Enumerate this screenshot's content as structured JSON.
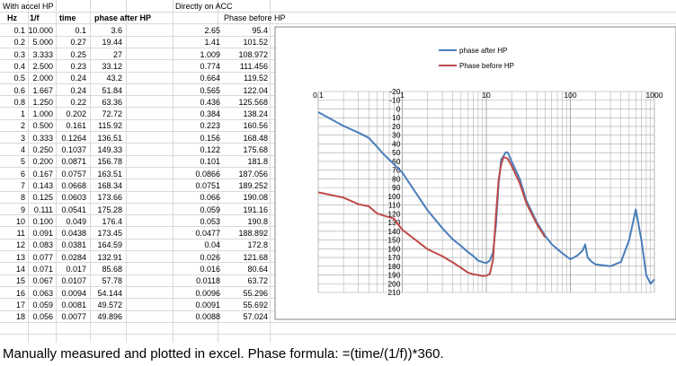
{
  "sheet": {
    "section_left": "With accel HP",
    "section_right": "Directly on ACC",
    "headers": {
      "hz": "Hz",
      "inv_f": "1/f",
      "time": "time",
      "phase_after": "phase after HP",
      "phase_before": "Phase before HP"
    },
    "rows": [
      [
        "0.1",
        "10.000",
        "0.1",
        "3.6",
        "2.65",
        "95.4"
      ],
      [
        "0.2",
        "5.000",
        "0.27",
        "19.44",
        "1.41",
        "101.52"
      ],
      [
        "0.3",
        "3.333",
        "0.25",
        "27",
        "1.009",
        "108.972"
      ],
      [
        "0.4",
        "2.500",
        "0.23",
        "33.12",
        "0.774",
        "111.456"
      ],
      [
        "0.5",
        "2.000",
        "0.24",
        "43.2",
        "0.664",
        "119.52"
      ],
      [
        "0.6",
        "1.667",
        "0.24",
        "51.84",
        "0.565",
        "122.04"
      ],
      [
        "0.8",
        "1.250",
        "0.22",
        "63.36",
        "0.436",
        "125.568"
      ],
      [
        "1",
        "1.000",
        "0.202",
        "72.72",
        "0.384",
        "138.24"
      ],
      [
        "2",
        "0.500",
        "0.161",
        "115.92",
        "0.223",
        "160.56"
      ],
      [
        "3",
        "0.333",
        "0.1264",
        "136.51",
        "0.156",
        "168.48"
      ],
      [
        "4",
        "0.250",
        "0.1037",
        "149.33",
        "0.122",
        "175.68"
      ],
      [
        "5",
        "0.200",
        "0.0871",
        "156.78",
        "0.101",
        "181.8"
      ],
      [
        "6",
        "0.167",
        "0.0757",
        "163.51",
        "0.0866",
        "187.056"
      ],
      [
        "7",
        "0.143",
        "0.0668",
        "168.34",
        "0.0751",
        "189.252"
      ],
      [
        "8",
        "0.125",
        "0.0603",
        "173.66",
        "0.066",
        "190.08"
      ],
      [
        "9",
        "0.111",
        "0.0541",
        "175.28",
        "0.059",
        "191.16"
      ],
      [
        "10",
        "0.100",
        "0.049",
        "176.4",
        "0.053",
        "190.8"
      ],
      [
        "11",
        "0.091",
        "0.0438",
        "173.45",
        "0.0477",
        "188.892"
      ],
      [
        "12",
        "0.083",
        "0.0381",
        "164.59",
        "0.04",
        "172.8"
      ],
      [
        "13",
        "0.077",
        "0.0284",
        "132.91",
        "0.026",
        "121.68"
      ],
      [
        "14",
        "0.071",
        "0.017",
        "85.68",
        "0.016",
        "80.64"
      ],
      [
        "15",
        "0.067",
        "0.0107",
        "57.78",
        "0.0118",
        "63.72"
      ],
      [
        "16",
        "0.063",
        "0.0094",
        "54.144",
        "0.0096",
        "55.296"
      ],
      [
        "17",
        "0.059",
        "0.0081",
        "49.572",
        "0.0091",
        "55.692"
      ],
      [
        "18",
        "0.056",
        "0.0077",
        "49.896",
        "0.0088",
        "57.024"
      ]
    ]
  },
  "caption": "Manually measured and plotted in excel. Phase formula: =(time/(1/f))*360.",
  "colors": {
    "after": "#4a7ebb",
    "before": "#be4b48",
    "grid": "#a6a6a6"
  },
  "chart_data": {
    "type": "line",
    "x_scale": "log",
    "xlim": [
      0.1,
      1000
    ],
    "ylim": [
      -20,
      210
    ],
    "y_inverted": true,
    "x_ticks": [
      "0.1",
      "1",
      "10",
      "100",
      "1000"
    ],
    "y_ticks": [
      "-20",
      "-10",
      "0",
      "10",
      "20",
      "30",
      "40",
      "50",
      "60",
      "70",
      "80",
      "90",
      "100",
      "110",
      "120",
      "130",
      "140",
      "150",
      "160",
      "170",
      "180",
      "190",
      "200",
      "210"
    ],
    "legend_position": "top-right",
    "series": [
      {
        "name": "phase after HP",
        "x": [
          0.1,
          0.2,
          0.3,
          0.4,
          0.5,
          0.6,
          0.8,
          1,
          2,
          3,
          4,
          5,
          6,
          7,
          8,
          9,
          10,
          11,
          12,
          13,
          14,
          15,
          16,
          17,
          18,
          20,
          25,
          30,
          40,
          50,
          60,
          80,
          100,
          120,
          140,
          150,
          160,
          180,
          200,
          300,
          400,
          500,
          600,
          700,
          800,
          900,
          1000
        ],
        "y": [
          3.6,
          19.44,
          27,
          33.12,
          43.2,
          51.84,
          63.36,
          72.72,
          115.92,
          136.51,
          149.33,
          156.78,
          163.51,
          168.34,
          173.66,
          175.28,
          176.4,
          173.45,
          164.59,
          132.91,
          85.68,
          57.78,
          54.144,
          49.572,
          49.896,
          60,
          80,
          105,
          130,
          145,
          155,
          165,
          172,
          168,
          162,
          155,
          170,
          175,
          178,
          180,
          175,
          150,
          115,
          150,
          190,
          200,
          195
        ]
      },
      {
        "name": "Phase before HP",
        "x": [
          0.1,
          0.2,
          0.3,
          0.4,
          0.5,
          0.6,
          0.8,
          1,
          2,
          3,
          4,
          5,
          6,
          7,
          8,
          9,
          10,
          11,
          12,
          13,
          14,
          15,
          16,
          17,
          18,
          20,
          25,
          30,
          40,
          50
        ],
        "y": [
          95.4,
          101.52,
          108.972,
          111.456,
          119.52,
          122.04,
          125.568,
          138.24,
          160.56,
          168.48,
          175.68,
          181.8,
          187.056,
          189.252,
          190.08,
          191.16,
          190.8,
          188.892,
          172.8,
          121.68,
          80.64,
          63.72,
          55.296,
          55.692,
          57.024,
          65,
          85,
          108,
          132,
          147
        ]
      }
    ]
  }
}
